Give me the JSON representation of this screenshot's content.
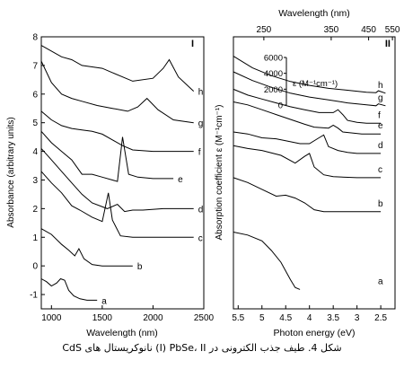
{
  "caption": "شکل 4. طیف جذب الکترونی در I) PbSe، II) نانوکریستال های CdS",
  "chart_data": [
    {
      "type": "line",
      "panel_label": "I",
      "xlabel": "Wavelength (nm)",
      "ylabel": "Absorbance (arbitrary units)",
      "xlim": [
        900,
        2500
      ],
      "ylim": [
        -1.5,
        8
      ],
      "x_ticks": [
        "1000",
        "1500",
        "2000",
        "2500"
      ],
      "y_ticks": [
        "-1",
        "0",
        "1",
        "2",
        "3",
        "4",
        "5",
        "6",
        "7",
        "8"
      ],
      "series": [
        {
          "name": "a",
          "x": [
            900,
            950,
            1000,
            1050,
            1090,
            1130,
            1170,
            1220,
            1280,
            1350,
            1450
          ],
          "y": [
            -0.45,
            -0.55,
            -0.7,
            -0.6,
            -0.45,
            -0.5,
            -0.85,
            -1.05,
            -1.15,
            -1.2,
            -1.2
          ]
        },
        {
          "name": "b",
          "x": [
            900,
            1000,
            1100,
            1170,
            1230,
            1270,
            1320,
            1400,
            1500,
            1600,
            1700,
            1800
          ],
          "y": [
            1.3,
            1.1,
            0.75,
            0.55,
            0.35,
            0.6,
            0.25,
            0.05,
            0.0,
            0.0,
            0.0,
            0.0
          ]
        },
        {
          "name": "c",
          "x": [
            900,
            1000,
            1100,
            1200,
            1280,
            1400,
            1500,
            1560,
            1600,
            1680,
            1800,
            2000,
            2200,
            2400
          ],
          "y": [
            3.3,
            2.9,
            2.55,
            2.1,
            1.95,
            1.7,
            1.55,
            2.55,
            1.6,
            1.05,
            1.0,
            1.0,
            1.0,
            1.0
          ]
        },
        {
          "name": "d",
          "x": [
            900,
            1000,
            1100,
            1200,
            1300,
            1400,
            1550,
            1650,
            1720,
            1800,
            1900,
            2100,
            2400
          ],
          "y": [
            4.1,
            3.7,
            3.3,
            2.9,
            2.5,
            2.2,
            2.0,
            2.15,
            1.9,
            1.95,
            1.95,
            2.0,
            2.0
          ]
        },
        {
          "name": "e",
          "x": [
            900,
            1000,
            1100,
            1200,
            1300,
            1400,
            1500,
            1600,
            1650,
            1700,
            1760,
            1850,
            2000,
            2200
          ],
          "y": [
            4.7,
            4.3,
            4.0,
            3.7,
            3.2,
            3.2,
            3.1,
            3.0,
            2.95,
            4.5,
            3.2,
            3.1,
            3.05,
            3.05
          ]
        },
        {
          "name": "f",
          "x": [
            900,
            1000,
            1100,
            1200,
            1300,
            1400,
            1500,
            1600,
            1700,
            1800,
            2000,
            2200,
            2400
          ],
          "y": [
            5.4,
            5.1,
            4.9,
            4.8,
            4.75,
            4.7,
            4.6,
            4.4,
            4.2,
            4.05,
            4.0,
            4.0,
            4.0
          ]
        },
        {
          "name": "g",
          "x": [
            900,
            1000,
            1100,
            1200,
            1300,
            1450,
            1600,
            1750,
            1850,
            1940,
            2050,
            2200,
            2400
          ],
          "y": [
            7.15,
            6.4,
            6.0,
            5.85,
            5.75,
            5.6,
            5.5,
            5.4,
            5.55,
            5.85,
            5.45,
            5.1,
            5.0
          ]
        },
        {
          "name": "h",
          "x": [
            900,
            1000,
            1100,
            1200,
            1300,
            1400,
            1500,
            1600,
            1800,
            2000,
            2100,
            2160,
            2250,
            2400
          ],
          "y": [
            7.7,
            7.5,
            7.3,
            7.2,
            7.0,
            6.95,
            6.9,
            6.75,
            6.45,
            6.55,
            6.9,
            7.2,
            6.6,
            6.1
          ]
        }
      ]
    },
    {
      "type": "line",
      "panel_label": "II",
      "xlabel": "Photon energy (eV)",
      "ylabel": "Absorption coefficient ε (M⁻¹cm⁻¹)",
      "x_top_label": "Wavelength (nm)",
      "x_reversed": true,
      "xlim": [
        5.6,
        2.2
      ],
      "x_ticks": [
        "5.5",
        "5",
        "4.5",
        "4",
        "3.5",
        "3",
        "2.5"
      ],
      "x_top_ticks": [
        "250",
        "350",
        "450",
        "550"
      ],
      "scale_bar_label": "ε (M⁻¹cm⁻¹)",
      "scale_bar_ticks": [
        "6000",
        "4000",
        "2000",
        "0"
      ],
      "series": [
        {
          "name": "a",
          "x": [
            5.6,
            5.3,
            5.0,
            4.8,
            4.6,
            4.4,
            4.3,
            4.2
          ],
          "y": [
            7.9,
            7.6,
            7.0,
            6.0,
            4.8,
            3.0,
            2.2,
            2.0
          ]
        },
        {
          "name": "b",
          "x": [
            5.6,
            5.3,
            5.0,
            4.7,
            4.5,
            4.3,
            4.1,
            3.9,
            3.7,
            3.5,
            3.0,
            2.5
          ],
          "y": [
            13.5,
            13.0,
            12.3,
            11.6,
            11.7,
            11.4,
            10.9,
            10.2,
            10.0,
            10.0,
            10.0,
            10.0
          ]
        },
        {
          "name": "c",
          "x": [
            5.6,
            5.3,
            5.0,
            4.6,
            4.3,
            4.1,
            4.0,
            3.9,
            3.7,
            3.5,
            3.0,
            2.5
          ],
          "y": [
            16.8,
            16.5,
            16.3,
            15.8,
            15.0,
            15.7,
            16.0,
            14.6,
            13.8,
            13.6,
            13.5,
            13.5
          ]
        },
        {
          "name": "d",
          "x": [
            5.6,
            5.3,
            5.0,
            4.7,
            4.5,
            4.2,
            4.0,
            3.8,
            3.7,
            3.6,
            3.4,
            3.2,
            3.0,
            2.5
          ],
          "y": [
            18.2,
            18.0,
            17.6,
            17.5,
            17.3,
            17.0,
            17.0,
            17.6,
            17.9,
            16.7,
            16.3,
            16.1,
            16.0,
            16.0
          ]
        },
        {
          "name": "e",
          "x": [
            5.6,
            5.3,
            5.0,
            4.7,
            4.4,
            4.1,
            3.9,
            3.6,
            3.5,
            3.4,
            3.3,
            3.1,
            2.9,
            2.5
          ],
          "y": [
            21.3,
            21.0,
            20.5,
            20.0,
            19.5,
            19.0,
            18.7,
            18.6,
            18.9,
            18.6,
            18.2,
            18.1,
            18.0,
            18.0
          ]
        },
        {
          "name": "f",
          "x": [
            5.6,
            5.3,
            5.0,
            4.7,
            4.4,
            4.1,
            3.8,
            3.5,
            3.4,
            3.3,
            3.2,
            3.0,
            2.8,
            2.5
          ],
          "y": [
            22.6,
            22.0,
            21.6,
            21.2,
            20.8,
            20.5,
            20.2,
            20.2,
            20.5,
            20.0,
            19.4,
            19.2,
            19.1,
            19.1
          ]
        },
        {
          "name": "g",
          "x": [
            5.6,
            5.2,
            4.8,
            4.4,
            4.0,
            3.6,
            3.2,
            2.8,
            2.6,
            2.55,
            2.4
          ],
          "y": [
            24.4,
            23.5,
            22.8,
            22.2,
            21.8,
            21.5,
            21.2,
            21.0,
            20.9,
            21.1,
            20.9
          ]
        },
        {
          "name": "h",
          "x": [
            5.6,
            5.2,
            4.8,
            4.4,
            4.0,
            3.6,
            3.2,
            2.8,
            2.6,
            2.55,
            2.4
          ],
          "y": [
            26.0,
            24.8,
            24.0,
            23.4,
            23.0,
            22.7,
            22.5,
            22.3,
            22.25,
            22.45,
            22.2
          ]
        }
      ]
    }
  ]
}
